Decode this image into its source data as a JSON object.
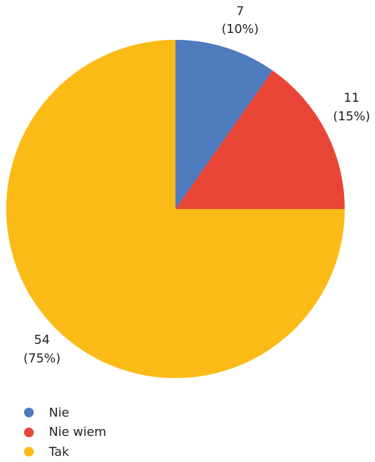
{
  "chart_data": {
    "type": "pie",
    "slices": [
      {
        "category": "Nie",
        "value": 7,
        "percent": "10%",
        "color": "#4e7abe"
      },
      {
        "category": "Nie wiem",
        "value": 11,
        "percent": "15%",
        "color": "#e84537"
      },
      {
        "category": "Tak",
        "value": 54,
        "percent": "75%",
        "color": "#fbbb17"
      }
    ],
    "legend_position": "bottom-left"
  }
}
